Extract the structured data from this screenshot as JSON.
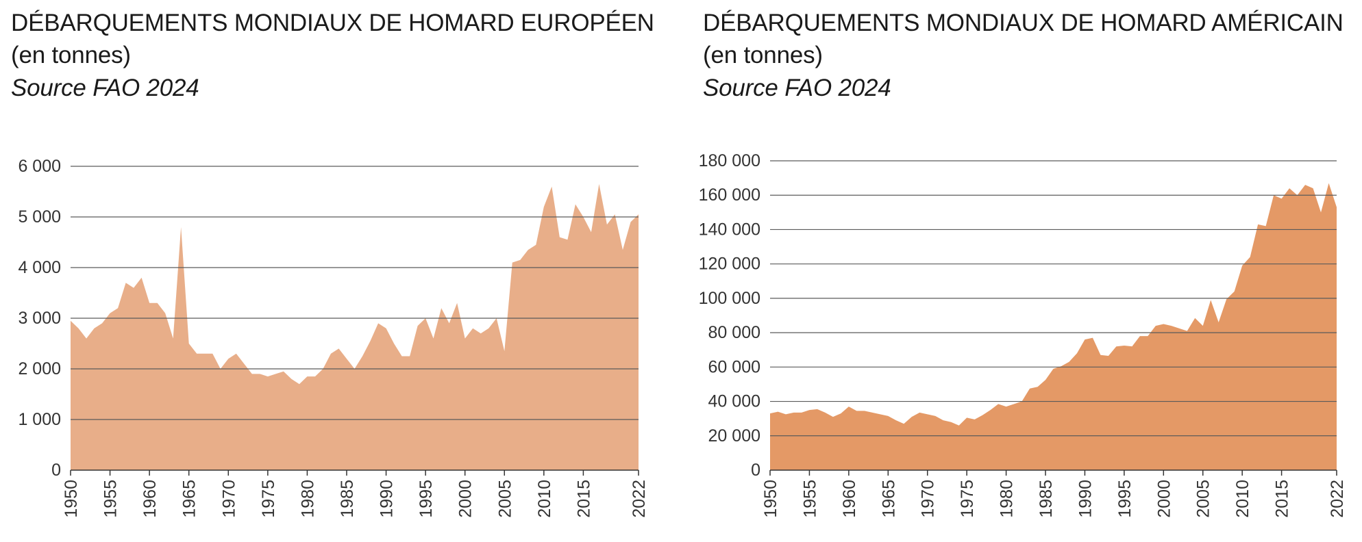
{
  "chart_data": [
    {
      "type": "area",
      "title": "DÉBARQUEMENTS MONDIAUX DE HOMARD EUROPÉEN",
      "subtitle": "(en tonnes)",
      "source": "Source FAO 2024",
      "color": "#e8ae89",
      "ylim": [
        0,
        6000
      ],
      "xlim": [
        1950,
        2022
      ],
      "yticks": [
        0,
        1000,
        2000,
        3000,
        4000,
        5000,
        6000
      ],
      "ytick_labels": [
        "0",
        "1 000",
        "2 000",
        "3 000",
        "4 000",
        "5 000",
        "6 000"
      ],
      "xticks": [
        1950,
        1955,
        1960,
        1965,
        1970,
        1975,
        1980,
        1985,
        1990,
        1995,
        2000,
        2005,
        2010,
        2015,
        2022
      ],
      "grid": true,
      "x": [
        1950,
        1951,
        1952,
        1953,
        1954,
        1955,
        1956,
        1957,
        1958,
        1959,
        1960,
        1961,
        1962,
        1963,
        1964,
        1965,
        1966,
        1967,
        1968,
        1969,
        1970,
        1971,
        1972,
        1973,
        1974,
        1975,
        1976,
        1977,
        1978,
        1979,
        1980,
        1981,
        1982,
        1983,
        1984,
        1985,
        1986,
        1987,
        1988,
        1989,
        1990,
        1991,
        1992,
        1993,
        1994,
        1995,
        1996,
        1997,
        1998,
        1999,
        2000,
        2001,
        2002,
        2003,
        2004,
        2005,
        2006,
        2007,
        2008,
        2009,
        2010,
        2011,
        2012,
        2013,
        2014,
        2015,
        2016,
        2017,
        2018,
        2019,
        2020,
        2021,
        2022
      ],
      "values": [
        2950,
        2800,
        2600,
        2800,
        2900,
        3100,
        3200,
        3700,
        3600,
        3800,
        3300,
        3300,
        3100,
        2600,
        4800,
        2500,
        2300,
        2300,
        2300,
        2000,
        2200,
        2300,
        2100,
        1900,
        1900,
        1850,
        1900,
        1950,
        1800,
        1700,
        1850,
        1850,
        2000,
        2300,
        2400,
        2200,
        2000,
        2250,
        2550,
        2900,
        2800,
        2500,
        2250,
        2250,
        2850,
        3000,
        2600,
        3200,
        2900,
        3300,
        2600,
        2800,
        2700,
        2800,
        3000,
        2350,
        4100,
        4150,
        4350,
        4450,
        5200,
        5600,
        4600,
        4550,
        5250,
        5000,
        4700,
        5650,
        4850,
        5050,
        4350,
        4900,
        5050
      ]
    },
    {
      "type": "area",
      "title": "DÉBARQUEMENTS MONDIAUX DE HOMARD AMÉRICAIN",
      "subtitle": "(en tonnes)",
      "source": "Source FAO 2024",
      "color": "#e49966",
      "ylim": [
        0,
        180000
      ],
      "xlim": [
        1950,
        2022
      ],
      "yticks": [
        0,
        20000,
        40000,
        60000,
        80000,
        100000,
        120000,
        140000,
        160000,
        180000
      ],
      "ytick_labels": [
        "0",
        "20 000",
        "40 000",
        "60 000",
        "80 000",
        "100 000",
        "120 000",
        "140 000",
        "160 000",
        "180 000"
      ],
      "xticks": [
        1950,
        1955,
        1960,
        1965,
        1970,
        1975,
        1980,
        1985,
        1990,
        1995,
        2000,
        2005,
        2010,
        2015,
        2022
      ],
      "grid": true,
      "x": [
        1950,
        1951,
        1952,
        1953,
        1954,
        1955,
        1956,
        1957,
        1958,
        1959,
        1960,
        1961,
        1962,
        1963,
        1964,
        1965,
        1966,
        1967,
        1968,
        1969,
        1970,
        1971,
        1972,
        1973,
        1974,
        1975,
        1976,
        1977,
        1978,
        1979,
        1980,
        1981,
        1982,
        1983,
        1984,
        1985,
        1986,
        1987,
        1988,
        1989,
        1990,
        1991,
        1992,
        1993,
        1994,
        1995,
        1996,
        1997,
        1998,
        1999,
        2000,
        2001,
        2002,
        2003,
        2004,
        2005,
        2006,
        2007,
        2008,
        2009,
        2010,
        2011,
        2012,
        2013,
        2014,
        2015,
        2016,
        2017,
        2018,
        2019,
        2020,
        2021,
        2022
      ],
      "values": [
        33000,
        34000,
        32500,
        33500,
        33500,
        35000,
        35500,
        33500,
        31000,
        33000,
        37000,
        34500,
        34500,
        33500,
        32500,
        31500,
        29000,
        27000,
        31000,
        33500,
        32500,
        31500,
        29000,
        28000,
        26000,
        30500,
        29500,
        32000,
        35000,
        38500,
        37000,
        38500,
        40000,
        47500,
        48500,
        52500,
        59000,
        60500,
        63000,
        68000,
        76000,
        77000,
        67000,
        66500,
        72000,
        72500,
        72000,
        78000,
        78000,
        84000,
        85000,
        84000,
        82500,
        81000,
        88500,
        84000,
        99000,
        86000,
        99500,
        104000,
        119000,
        124000,
        143000,
        142000,
        160000,
        158000,
        164000,
        160000,
        166000,
        164000,
        150000,
        167000,
        153000
      ]
    }
  ]
}
